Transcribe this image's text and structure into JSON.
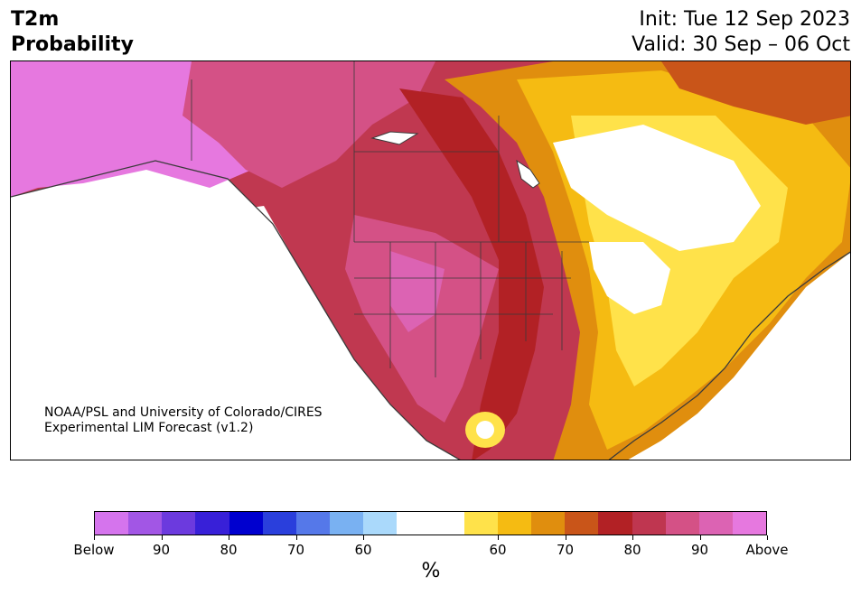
{
  "title": {
    "line1": "T2m",
    "line2": "Probability"
  },
  "forecast": {
    "init": "Init: Tue 12 Sep 2023",
    "valid": "Valid: 30 Sep – 06 Oct"
  },
  "credit": {
    "line1": "NOAA/PSL and University of Colorado/CIRES",
    "line2": "Experimental LIM Forecast (v1.2)"
  },
  "colorbar": {
    "unit_label": "%",
    "colors": [
      "#d574ed",
      "#a256e5",
      "#6c3ade",
      "#3820d8",
      "#0000cf",
      "#2a3fdc",
      "#5578e9",
      "#79b1f2",
      "#aad9fb",
      "#ffffff",
      "#ffffff",
      "#ffe24a",
      "#f5bb12",
      "#e08e0e",
      "#c95519",
      "#b22125",
      "#bf3650",
      "#d45186",
      "#dc63b3",
      "#e678df"
    ],
    "tick_labels": [
      "Below",
      "90",
      "80",
      "70",
      "60",
      "60",
      "70",
      "80",
      "90",
      "Above"
    ]
  },
  "legend_colors": {
    "above_high": "#e678df",
    "above_mid": "#c03850",
    "above_low": "#f5bb12",
    "near_normal": "#ffffff"
  }
}
